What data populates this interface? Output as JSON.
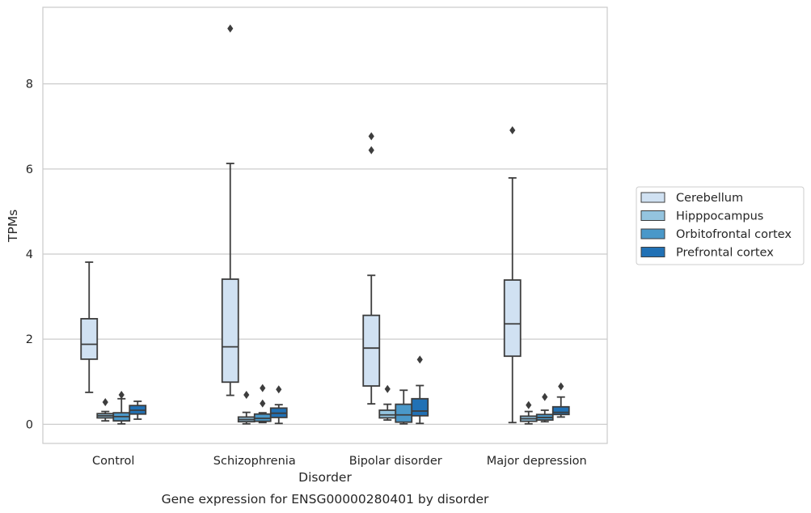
{
  "chart_data": {
    "type": "box",
    "caption": "Gene expression for ENSG00000280401 by disorder",
    "xlabel": "Disorder",
    "ylabel": "TPMs",
    "ylim": [
      -0.45,
      9.8
    ],
    "yticks": [
      0,
      2,
      4,
      6,
      8
    ],
    "grid": true,
    "legend_position": "right",
    "categories": [
      "Control",
      "Schizophrenia",
      "Bipolar disorder",
      "Major depression"
    ],
    "series": [
      {
        "name": "Cerebellum",
        "color": "#d0e1f2",
        "boxes": [
          {
            "whislo": 0.75,
            "q1": 1.53,
            "med": 1.88,
            "q3": 2.48,
            "whishi": 3.81,
            "fliers": []
          },
          {
            "whislo": 0.68,
            "q1": 0.99,
            "med": 1.82,
            "q3": 3.41,
            "whishi": 6.13,
            "fliers": [
              9.3
            ]
          },
          {
            "whislo": 0.48,
            "q1": 0.9,
            "med": 1.79,
            "q3": 2.56,
            "whishi": 3.5,
            "fliers": [
              6.44,
              6.77
            ]
          },
          {
            "whislo": 0.04,
            "q1": 1.6,
            "med": 2.36,
            "q3": 3.39,
            "whishi": 5.79,
            "fliers": [
              6.91
            ]
          }
        ]
      },
      {
        "name": "Hipppocampus",
        "color": "#94c4df",
        "boxes": [
          {
            "whislo": 0.08,
            "q1": 0.15,
            "med": 0.2,
            "q3": 0.25,
            "whishi": 0.3,
            "fliers": [
              0.52
            ]
          },
          {
            "whislo": 0.01,
            "q1": 0.06,
            "med": 0.11,
            "q3": 0.17,
            "whishi": 0.28,
            "fliers": [
              0.69
            ]
          },
          {
            "whislo": 0.1,
            "q1": 0.15,
            "med": 0.22,
            "q3": 0.33,
            "whishi": 0.47,
            "fliers": [
              0.83
            ]
          },
          {
            "whislo": 0.01,
            "q1": 0.07,
            "med": 0.13,
            "q3": 0.19,
            "whishi": 0.3,
            "fliers": [
              0.45
            ]
          }
        ]
      },
      {
        "name": "Orbitofrontal cortex",
        "color": "#4a98c9",
        "boxes": [
          {
            "whislo": 0.01,
            "q1": 0.08,
            "med": 0.18,
            "q3": 0.27,
            "whishi": 0.6,
            "fliers": [
              0.69
            ]
          },
          {
            "whislo": 0.04,
            "q1": 0.07,
            "med": 0.14,
            "q3": 0.24,
            "whishi": 0.27,
            "fliers": [
              0.49,
              0.85
            ]
          },
          {
            "whislo": 0.01,
            "q1": 0.05,
            "med": 0.22,
            "q3": 0.47,
            "whishi": 0.8,
            "fliers": []
          },
          {
            "whislo": 0.06,
            "q1": 0.1,
            "med": 0.16,
            "q3": 0.23,
            "whishi": 0.33,
            "fliers": [
              0.64
            ]
          }
        ]
      },
      {
        "name": "Prefrontal cortex",
        "color": "#2171b5",
        "boxes": [
          {
            "whislo": 0.12,
            "q1": 0.24,
            "med": 0.33,
            "q3": 0.44,
            "whishi": 0.54,
            "fliers": []
          },
          {
            "whislo": 0.02,
            "q1": 0.16,
            "med": 0.26,
            "q3": 0.38,
            "whishi": 0.46,
            "fliers": [
              0.82
            ]
          },
          {
            "whislo": 0.02,
            "q1": 0.2,
            "med": 0.31,
            "q3": 0.6,
            "whishi": 0.91,
            "fliers": [
              1.52
            ]
          },
          {
            "whislo": 0.17,
            "q1": 0.23,
            "med": 0.28,
            "q3": 0.41,
            "whishi": 0.64,
            "fliers": [
              0.89
            ]
          }
        ]
      }
    ]
  }
}
